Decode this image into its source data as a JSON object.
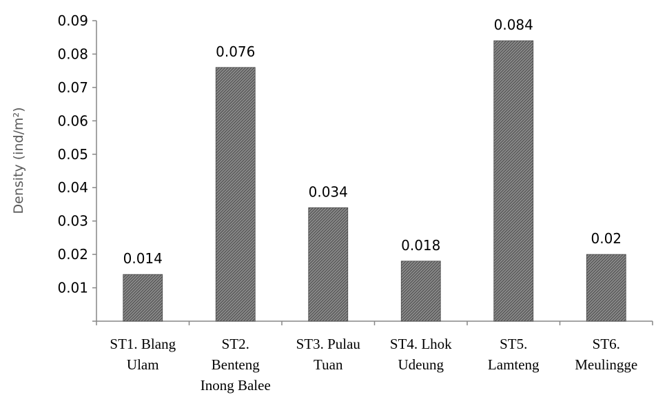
{
  "chart_data": {
    "type": "bar",
    "title": "",
    "xlabel": "",
    "ylabel": "Density (ind/m²)",
    "categories": [
      [
        "ST1. Blang",
        "Ulam"
      ],
      [
        "ST2.",
        "Benteng",
        "Inong Balee"
      ],
      [
        "ST3. Pulau",
        "Tuan"
      ],
      [
        "ST4. Lhok",
        "Udeung"
      ],
      [
        "ST5.",
        "Lamteng"
      ],
      [
        "ST6.",
        "Meulingge"
      ]
    ],
    "values": [
      0.014,
      0.076,
      0.034,
      0.018,
      0.084,
      0.02
    ],
    "data_labels": [
      "0.014",
      "0.076",
      "0.034",
      "0.018",
      "0.084",
      "0.02"
    ],
    "ylim": [
      0,
      0.09
    ],
    "yticks": [
      "0.01",
      "0.02",
      "0.03",
      "0.04",
      "0.05",
      "0.06",
      "0.07",
      "0.08",
      "0.09"
    ],
    "ytick_values": [
      0.01,
      0.02,
      0.03,
      0.04,
      0.05,
      0.06,
      0.07,
      0.08,
      0.09
    ],
    "grid": false,
    "legend": "none",
    "bar_fill": "hatched dark gray",
    "bar_color": "#555555"
  }
}
